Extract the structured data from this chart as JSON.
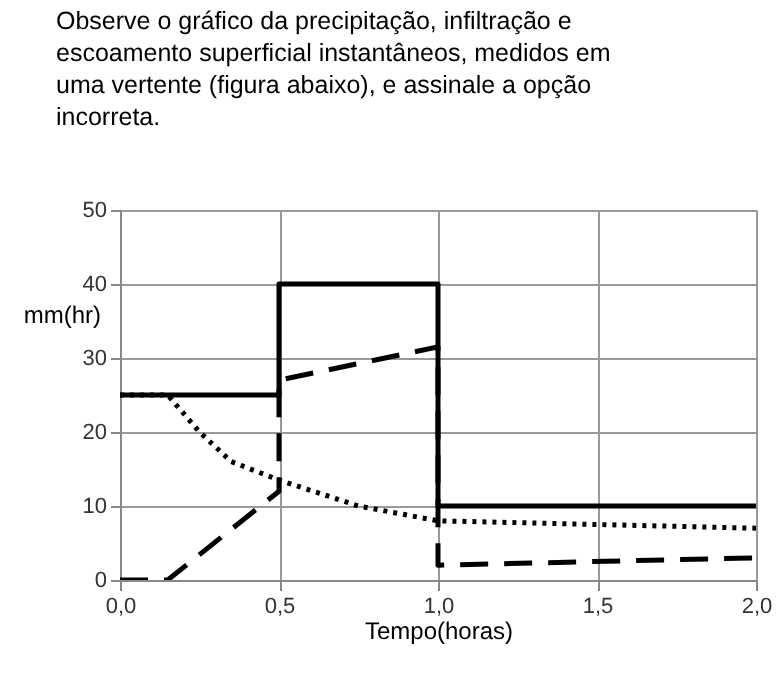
{
  "chart_data": {
    "type": "line",
    "title": "Observe o gráfico da precipitação, infiltração e escoamento superficial instantâneos, medidos em uma vertente (figura abaixo), e assinale a opção incorreta.",
    "xlabel": "Tempo(horas)",
    "ylabel": "mm(hr)",
    "xlim": [
      0,
      2
    ],
    "xticks": [
      {
        "value": 0,
        "label": "0,0"
      },
      {
        "value": 0.5,
        "label": "0,5"
      },
      {
        "value": 1,
        "label": "1,0"
      },
      {
        "value": 1.5,
        "label": "1,5"
      },
      {
        "value": 2,
        "label": "2,0"
      }
    ],
    "ylim": [
      0,
      50
    ],
    "yticks": [
      0,
      10,
      20,
      30,
      40,
      50
    ],
    "grid": true,
    "marker": "none",
    "series": [
      {
        "color": "#000000",
        "line_style": "solid",
        "x": [
          0,
          0.5,
          0.5,
          1,
          1,
          2
        ],
        "values": [
          25,
          25,
          40,
          40,
          10,
          10
        ]
      },
      {
        "color": "#000000",
        "line_style": "dotted",
        "x": [
          0,
          0.15,
          0.25,
          0.35,
          0.5,
          0.75,
          1,
          1.5,
          2
        ],
        "values": [
          25,
          25,
          20,
          16,
          13.5,
          10,
          8,
          7.5,
          7
        ]
      },
      {
        "color": "#000000",
        "line_style": "dashed",
        "x": [
          0,
          0.15,
          0.5,
          0.5,
          1,
          1,
          2
        ],
        "values": [
          0,
          0,
          12,
          27,
          31.5,
          2,
          3
        ]
      }
    ]
  }
}
